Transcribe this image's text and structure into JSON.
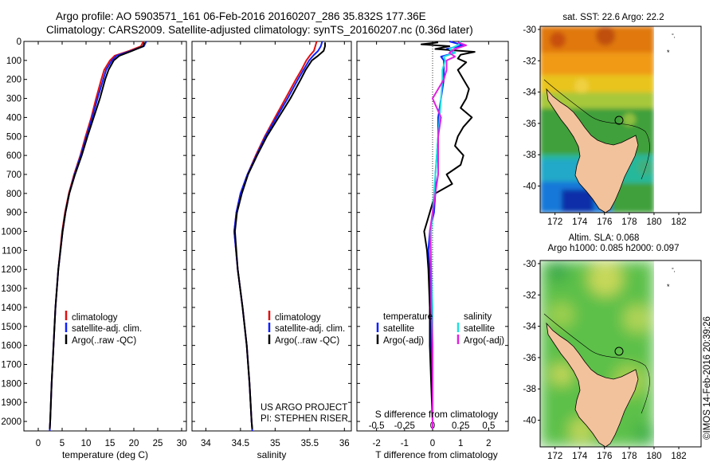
{
  "header": {
    "line1": "Argo profile: AO 5903571_161 06-Feb-2016 20160207_286 35.832S 177.36E",
    "line2": "Climatology: CARS2009. Satellite-adjusted climatology: synTS_20160207.nc (0.36d later)"
  },
  "colors": {
    "climatology": "#e01010",
    "satellite": "#1020ff",
    "argo": "#000000",
    "sat_salinity": "#20e0e0",
    "argo_salinity": "#e020e0",
    "land": "#f2c29c"
  },
  "chart_data": [
    {
      "type": "line",
      "panel": "temperature",
      "xlabel": "temperature (deg C)",
      "ylabel": "",
      "xlim": [
        -3,
        31
      ],
      "ylim": [
        2050,
        0
      ],
      "xticks": [
        0,
        5,
        10,
        15,
        20,
        25,
        30
      ],
      "yticks": [
        0,
        100,
        200,
        300,
        400,
        500,
        600,
        700,
        800,
        900,
        1000,
        1100,
        1200,
        1300,
        1400,
        1500,
        1600,
        1700,
        1800,
        1900,
        2000
      ],
      "legend": [
        "climatology",
        "satellite-adj. clim.",
        "Argo(..raw -QC)"
      ],
      "series": [
        {
          "name": "climatology",
          "y": [
            0,
            25,
            50,
            75,
            100,
            150,
            200,
            300,
            400,
            500,
            600,
            700,
            800,
            900,
            1000,
            1200,
            1400,
            1600,
            1800,
            2000,
            2050
          ],
          "x": [
            22.0,
            21.5,
            19.0,
            16.0,
            15.0,
            13.8,
            13.2,
            12.1,
            11.1,
            9.9,
            8.8,
            7.5,
            6.4,
            5.6,
            5.0,
            4.2,
            3.6,
            3.2,
            2.8,
            2.5,
            2.4
          ]
        },
        {
          "name": "satellite-adj. clim.",
          "y": [
            0,
            25,
            50,
            75,
            100,
            150,
            200,
            300,
            400,
            500,
            600,
            700,
            800,
            900,
            1000,
            1200,
            1400,
            1600,
            1800,
            2000,
            2050
          ],
          "x": [
            22.6,
            22.1,
            19.4,
            16.4,
            15.4,
            14.2,
            13.6,
            12.4,
            11.3,
            10.1,
            8.9,
            7.6,
            6.5,
            5.7,
            5.1,
            4.2,
            3.6,
            3.2,
            2.8,
            2.5,
            2.4
          ]
        },
        {
          "name": "Argo(..raw -QC)",
          "y": [
            5,
            25,
            50,
            75,
            100,
            150,
            200,
            300,
            400,
            500,
            600,
            700,
            800,
            900,
            1000,
            1200,
            1400,
            1600,
            1800,
            2000,
            2040
          ],
          "x": [
            22.2,
            22.0,
            19.6,
            17.0,
            15.8,
            14.7,
            14.0,
            12.9,
            11.6,
            10.3,
            9.1,
            7.7,
            6.5,
            5.7,
            5.1,
            4.2,
            3.6,
            3.2,
            2.8,
            2.5,
            2.4
          ]
        }
      ]
    },
    {
      "type": "line",
      "panel": "salinity",
      "xlabel": "salinity",
      "ylabel": "",
      "xlim": [
        33.8,
        36.1
      ],
      "ylim": [
        2050,
        0
      ],
      "xticks": [
        34,
        34.5,
        35,
        35.5,
        36
      ],
      "legend": [
        "climatology",
        "satellite-adj. clim.",
        "Argo(..raw -QC)"
      ],
      "series": [
        {
          "name": "climatology",
          "y": [
            0,
            25,
            50,
            75,
            100,
            150,
            200,
            300,
            400,
            500,
            600,
            700,
            800,
            900,
            1000,
            1200,
            1400,
            1600,
            1800,
            2000,
            2050
          ],
          "x": [
            35.6,
            35.58,
            35.56,
            35.5,
            35.45,
            35.38,
            35.3,
            35.15,
            35.0,
            34.85,
            34.72,
            34.6,
            34.5,
            34.44,
            34.41,
            34.46,
            34.53,
            34.59,
            34.63,
            34.66,
            34.67
          ]
        },
        {
          "name": "satellite-adj. clim.",
          "y": [
            0,
            25,
            50,
            75,
            100,
            150,
            200,
            300,
            400,
            500,
            600,
            700,
            800,
            900,
            1000,
            1200,
            1400,
            1600,
            1800,
            2000,
            2050
          ],
          "x": [
            35.68,
            35.66,
            35.62,
            35.55,
            35.49,
            35.41,
            35.33,
            35.18,
            35.02,
            34.86,
            34.73,
            34.6,
            34.5,
            34.44,
            34.41,
            34.46,
            34.53,
            34.59,
            34.63,
            34.66,
            34.67
          ]
        },
        {
          "name": "Argo(..raw -QC)",
          "y": [
            5,
            25,
            50,
            75,
            100,
            150,
            200,
            300,
            400,
            500,
            600,
            700,
            800,
            900,
            1000,
            1200,
            1400,
            1600,
            1800,
            2000,
            2040
          ],
          "x": [
            35.72,
            35.72,
            35.7,
            35.62,
            35.53,
            35.44,
            35.37,
            35.22,
            35.05,
            34.88,
            34.74,
            34.61,
            34.52,
            34.45,
            34.42,
            34.46,
            34.53,
            34.59,
            34.63,
            34.66,
            34.67
          ]
        }
      ]
    },
    {
      "type": "line",
      "panel": "differences",
      "xlabel": "T difference from climatology",
      "xlabel2": "S difference from climatology",
      "xlim": [
        -2.7,
        2.7
      ],
      "ylim": [
        2050,
        0
      ],
      "xticks": [
        -2,
        -1,
        0,
        1,
        2
      ],
      "xticks2_labels": [
        "-0.5",
        "-0.25",
        "0",
        "0.25",
        "0.5"
      ],
      "legend_titles": [
        "temperature",
        "salinity"
      ],
      "legend": [
        "satellite",
        "Argo(-adj)",
        "satellite",
        "Argo(-adj)"
      ],
      "series": [
        {
          "name": "satellite",
          "y": [
            0,
            20,
            40,
            60,
            80,
            100,
            150,
            200,
            300,
            400,
            500,
            600,
            700,
            800,
            900,
            1000,
            1100,
            1200,
            1400,
            1600,
            1800,
            2000,
            2040
          ],
          "x": [
            0.6,
            1.1,
            0.5,
            0.8,
            0.3,
            0.4,
            0.4,
            0.4,
            0.3,
            0.2,
            0.2,
            0.15,
            0.1,
            0.1,
            0.05,
            -0.1,
            -0.15,
            -0.1,
            -0.05,
            -0.05,
            0.0,
            0.0,
            0.0
          ]
        },
        {
          "name": "Argo(-adj)",
          "y": [
            5,
            15,
            25,
            40,
            55,
            70,
            90,
            110,
            150,
            200,
            250,
            300,
            350,
            400,
            450,
            500,
            550,
            600,
            650,
            700,
            750,
            800,
            850,
            900,
            950,
            1000,
            1100,
            1200,
            1400,
            1600,
            1800,
            2000,
            2040
          ],
          "x": [
            0.2,
            -0.4,
            0.6,
            0.1,
            1.5,
            1.0,
            0.9,
            1.2,
            0.9,
            1.1,
            1.3,
            1.2,
            1.0,
            1.4,
            1.1,
            0.9,
            0.8,
            1.1,
            1.0,
            0.5,
            0.7,
            0.1,
            0.0,
            -0.1,
            -0.2,
            -0.3,
            -0.2,
            -0.15,
            -0.1,
            -0.1,
            -0.05,
            0.0,
            0.0
          ]
        },
        {
          "name": "satellite (salinity)",
          "y": [
            0,
            20,
            40,
            60,
            80,
            100,
            150,
            200,
            300,
            400,
            500,
            600,
            700,
            800,
            900,
            1000,
            1200,
            1400,
            1600,
            1800,
            2000,
            2040
          ],
          "x": [
            1.0,
            0.9,
            0.6,
            0.8,
            0.4,
            0.45,
            0.35,
            0.35,
            0.3,
            0.25,
            0.2,
            0.15,
            0.1,
            0.05,
            0.0,
            -0.05,
            -0.05,
            0.0,
            0.0,
            0.0,
            0.0,
            0.0
          ]
        },
        {
          "name": "Argo(-adj) (salinity)",
          "y": [
            5,
            20,
            40,
            60,
            80,
            100,
            150,
            200,
            300,
            400,
            500,
            600,
            700,
            800,
            900,
            1000,
            1200,
            1400,
            1600,
            1800,
            2000,
            2040
          ],
          "x": [
            0.9,
            1.2,
            0.8,
            0.6,
            0.8,
            0.5,
            0.5,
            0.4,
            0.0,
            0.3,
            0.2,
            0.2,
            0.2,
            0.1,
            0.0,
            -0.1,
            -0.05,
            -0.05,
            0.0,
            0.0,
            0.0,
            0.0
          ]
        }
      ]
    },
    {
      "type": "heatmap",
      "panel": "sst-map",
      "title": "sat. SST: 22.6  Argo: 22.2",
      "xticks": [
        172,
        174,
        176,
        178,
        180,
        182
      ],
      "yticks": [
        -30,
        -32,
        -34,
        -36,
        -38,
        -40
      ],
      "xlim": [
        170.8,
        183.8
      ],
      "ylim": [
        -41.7,
        -29.8
      ],
      "float": {
        "lon": 177.36,
        "lat": -35.832
      }
    },
    {
      "type": "heatmap",
      "panel": "sla-map",
      "title_line1": "Altim. SLA: 0.068",
      "title_line2": "Argo h1000: 0.085 h2000: 0.097",
      "xticks": [
        172,
        174,
        176,
        178,
        180,
        182
      ],
      "yticks": [
        -30,
        -32,
        -34,
        -36,
        -38,
        -40
      ],
      "xlim": [
        170.8,
        183.8
      ],
      "ylim": [
        -41.7,
        -29.8
      ],
      "float": {
        "lon": 177.36,
        "lat": -35.832
      }
    }
  ],
  "notes": {
    "project": "US ARGO PROJECT",
    "pi": "PI: STEPHEN RISER",
    "credit": "©IMOS 14-Feb-2016 20:39:26"
  }
}
